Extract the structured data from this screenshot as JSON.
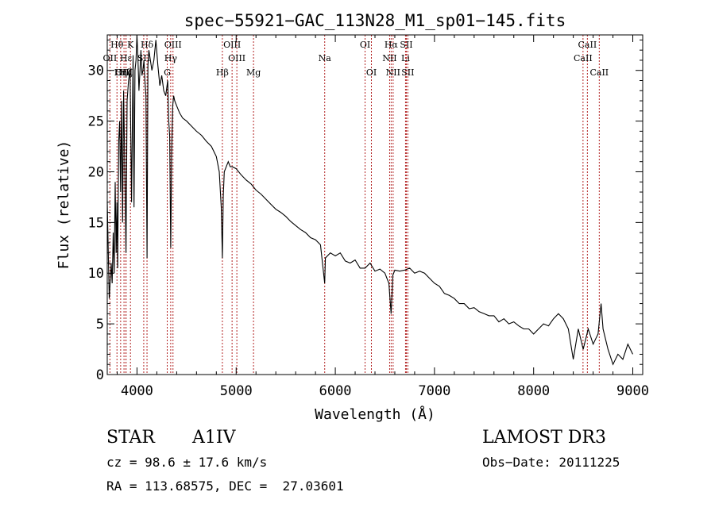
{
  "chart_data": {
    "type": "line",
    "title": "spec−55921−GAC_113N28_M1_sp01−145.fits",
    "xlabel": "Wavelength (Å)",
    "ylabel": "Flux (relative)",
    "xlim": [
      3700,
      9100
    ],
    "ylim": [
      0,
      33.5
    ],
    "x_ticks": [
      4000,
      5000,
      6000,
      7000,
      8000,
      9000
    ],
    "x_tick_labels": [
      "4000",
      "5000",
      "6000",
      "7000",
      "8000",
      "9000"
    ],
    "y_ticks": [
      0,
      5,
      10,
      15,
      20,
      25,
      30
    ],
    "y_tick_labels": [
      "0",
      "5",
      "10",
      "15",
      "20",
      "25",
      "30"
    ],
    "series": [
      {
        "name": "flux",
        "x": [
          3700,
          3720,
          3740,
          3750,
          3760,
          3770,
          3780,
          3790,
          3798,
          3805,
          3815,
          3825,
          3835,
          3845,
          3855,
          3865,
          3875,
          3889,
          3900,
          3915,
          3930,
          3945,
          3960,
          3970,
          3980,
          3990,
          4000,
          4010,
          4020,
          4030,
          4040,
          4050,
          4060,
          4070,
          4080,
          4090,
          4101,
          4110,
          4120,
          4135,
          4150,
          4170,
          4190,
          4210,
          4230,
          4250,
          4270,
          4290,
          4310,
          4320,
          4330,
          4340,
          4350,
          4360,
          4370,
          4380,
          4400,
          4430,
          4460,
          4500,
          4550,
          4600,
          4650,
          4700,
          4750,
          4800,
          4830,
          4850,
          4861,
          4870,
          4880,
          4900,
          4920,
          4940,
          4960,
          5000,
          5050,
          5100,
          5150,
          5200,
          5250,
          5300,
          5350,
          5400,
          5450,
          5500,
          5550,
          5600,
          5650,
          5700,
          5750,
          5800,
          5850,
          5893,
          5900,
          5950,
          6000,
          6050,
          6100,
          6150,
          6200,
          6250,
          6300,
          6350,
          6400,
          6450,
          6500,
          6540,
          6563,
          6580,
          6600,
          6650,
          6700,
          6750,
          6800,
          6850,
          6900,
          6950,
          7000,
          7050,
          7100,
          7150,
          7200,
          7250,
          7300,
          7350,
          7400,
          7450,
          7500,
          7550,
          7600,
          7650,
          7700,
          7750,
          7800,
          7850,
          7900,
          7950,
          8000,
          8050,
          8100,
          8150,
          8200,
          8250,
          8300,
          8350,
          8400,
          8450,
          8500,
          8550,
          8600,
          8650,
          8680,
          8700,
          8750,
          8800,
          8850,
          8900,
          8950,
          9000
        ],
        "values": [
          17.0,
          7.5,
          11.0,
          9.0,
          14.0,
          10.0,
          19.0,
          12.0,
          17.0,
          10.5,
          23.0,
          25.0,
          18.0,
          27.0,
          15.0,
          28.0,
          22.0,
          12.0,
          27.0,
          29.0,
          30.0,
          17.0,
          31.5,
          16.5,
          30.0,
          31.0,
          33.5,
          31.0,
          28.0,
          30.0,
          32.0,
          29.5,
          30.0,
          31.0,
          29.0,
          27.5,
          11.5,
          30.5,
          32.0,
          31.0,
          30.0,
          31.0,
          33.0,
          30.5,
          28.5,
          29.5,
          28.0,
          27.5,
          29.0,
          25.0,
          23.5,
          12.5,
          22.0,
          26.5,
          27.5,
          27.0,
          26.5,
          25.8,
          25.3,
          25.0,
          24.5,
          24.0,
          23.6,
          23.0,
          22.5,
          21.5,
          20.0,
          16.5,
          11.5,
          17.5,
          20.0,
          20.5,
          21.0,
          20.5,
          20.5,
          20.3,
          19.7,
          19.2,
          18.8,
          18.2,
          17.8,
          17.3,
          16.8,
          16.3,
          16.0,
          15.6,
          15.1,
          14.7,
          14.3,
          14.0,
          13.5,
          13.3,
          12.8,
          9.0,
          11.5,
          12.0,
          11.7,
          12.0,
          11.2,
          11.0,
          11.3,
          10.5,
          10.5,
          11.0,
          10.2,
          10.4,
          10.0,
          9.0,
          6.0,
          9.8,
          10.3,
          10.2,
          10.3,
          10.5,
          10.0,
          10.2,
          10.0,
          9.5,
          9.0,
          8.7,
          8.0,
          7.8,
          7.5,
          7.0,
          7.0,
          6.5,
          6.6,
          6.2,
          6.0,
          5.8,
          5.8,
          5.2,
          5.5,
          5.0,
          5.2,
          4.8,
          4.5,
          4.5,
          4.0,
          4.5,
          5.0,
          4.8,
          5.5,
          6.0,
          5.5,
          4.5,
          1.5,
          4.5,
          2.5,
          4.5,
          3.0,
          4.0,
          7.0,
          4.5,
          2.5,
          1.0,
          2.0,
          1.5,
          3.0,
          2.0
        ]
      }
    ],
    "spectral_lines": [
      {
        "label": "Hθ",
        "wavelength": 3798,
        "row": 0
      },
      {
        "label": "K",
        "wavelength": 3934,
        "row": 0
      },
      {
        "label": "Hδ",
        "wavelength": 4101,
        "row": 0
      },
      {
        "label": "OIII",
        "wavelength": 4363,
        "row": 0
      },
      {
        "label": "OIII",
        "wavelength": 4959,
        "row": 0
      },
      {
        "label": "OI",
        "wavelength": 6300,
        "row": 0
      },
      {
        "label": "Hα",
        "wavelength": 6563,
        "row": 0
      },
      {
        "label": "SII",
        "wavelength": 6716,
        "row": 0
      },
      {
        "label": "CaII",
        "wavelength": 8542,
        "row": 0
      },
      {
        "label": "OII",
        "wavelength": 3727,
        "row": 1
      },
      {
        "label": "Hε",
        "wavelength": 3889,
        "row": 1
      },
      {
        "label": "SII",
        "wavelength": 4068,
        "row": 1
      },
      {
        "label": "Hγ",
        "wavelength": 4340,
        "row": 1
      },
      {
        "label": "OIII",
        "wavelength": 5007,
        "row": 1
      },
      {
        "label": "Na",
        "wavelength": 5893,
        "row": 1
      },
      {
        "label": "NII",
        "wavelength": 6548,
        "row": 1
      },
      {
        "label": "Li",
        "wavelength": 6708,
        "row": 1
      },
      {
        "label": "CaII",
        "wavelength": 8498,
        "row": 1
      },
      {
        "label": "OIII",
        "wavelength": 3869,
        "row": 2
      },
      {
        "label": "Hη",
        "wavelength": 3835,
        "row": 2
      },
      {
        "label": "Hζ",
        "wavelength": 3889,
        "row": 2
      },
      {
        "label": "Hβ",
        "wavelength": 4861,
        "row": 2
      },
      {
        "label": "G",
        "wavelength": 4305,
        "row": 2
      },
      {
        "label": "Mg",
        "wavelength": 5175,
        "row": 2
      },
      {
        "label": "OI",
        "wavelength": 6364,
        "row": 2
      },
      {
        "label": "NII",
        "wavelength": 6583,
        "row": 2
      },
      {
        "label": "SII",
        "wavelength": 6731,
        "row": 2
      },
      {
        "label": "CaII",
        "wavelength": 8662,
        "row": 2
      }
    ]
  },
  "info": {
    "object_class": "STAR",
    "subclass": "A1IV",
    "survey": "LAMOST DR3",
    "cz": "cz = 98.6 ± 17.6 km/s",
    "obs_date": "Obs−Date: 20111225",
    "coords": "RA = 113.68575, DEC =  27.03601"
  }
}
